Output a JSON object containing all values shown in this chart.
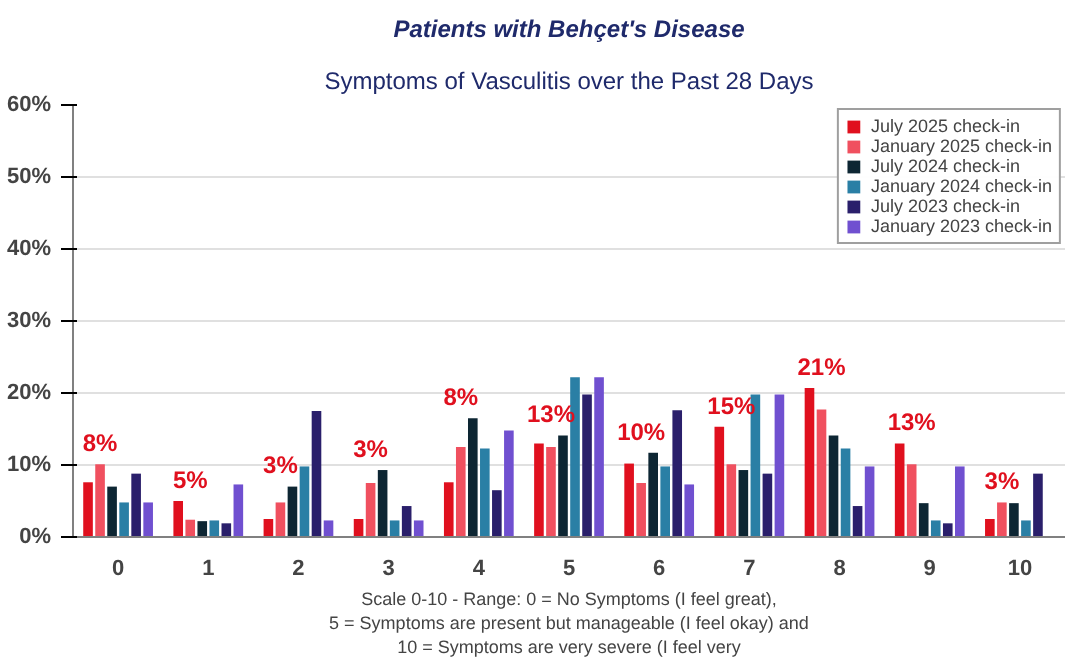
{
  "chart_data": {
    "type": "bar",
    "title": "Patients with Behçet's Disease",
    "subtitle": "Symptoms of Vasculitis over the Past 28 Days",
    "xlabel": "Scale 0-10 - Range: 0 = No Symptoms (I feel great),\n5 = Symptoms are present but manageable (I feel okay) and\n10 = Symptoms are very severe (I feel very",
    "categories": [
      "0",
      "1",
      "2",
      "3",
      "4",
      "5",
      "6",
      "7",
      "8",
      "9",
      "10"
    ],
    "series": [
      {
        "name": "July 2025 check-in",
        "color": "#e0101e",
        "values": [
          7.6,
          5.0,
          2.5,
          2.5,
          7.6,
          13.0,
          10.2,
          15.3,
          20.7,
          13.0,
          2.5
        ],
        "value_labels": [
          "8%",
          "5%",
          "3%",
          "3%",
          "8%",
          "13%",
          "10%",
          "15%",
          "21%",
          "13%",
          "3%"
        ]
      },
      {
        "name": "January 2025 check-in",
        "color": "#f0505f",
        "values": [
          10.1,
          2.4,
          4.8,
          7.5,
          12.5,
          12.5,
          7.5,
          10.1,
          17.7,
          10.1,
          4.8
        ]
      },
      {
        "name": "July 2024 check-in",
        "color": "#0d2633",
        "values": [
          7.0,
          2.2,
          7.0,
          9.3,
          16.5,
          14.1,
          11.7,
          9.3,
          14.1,
          4.7,
          4.7
        ]
      },
      {
        "name": "January 2024 check-in",
        "color": "#2a7fa5",
        "values": [
          4.8,
          2.3,
          9.8,
          2.3,
          12.3,
          22.2,
          9.8,
          19.8,
          12.3,
          2.3,
          2.3
        ]
      },
      {
        "name": "July 2023 check-in",
        "color": "#2a1f6b",
        "values": [
          8.8,
          1.9,
          17.5,
          4.3,
          6.5,
          19.8,
          17.6,
          8.8,
          4.3,
          1.9,
          8.8
        ]
      },
      {
        "name": "January 2023 check-in",
        "color": "#7050d0",
        "values": [
          4.8,
          7.3,
          2.3,
          2.3,
          14.8,
          22.2,
          7.3,
          19.8,
          9.8,
          9.8,
          null
        ]
      }
    ],
    "ylim": [
      0,
      60
    ],
    "yticks": [
      {
        "value": 0,
        "label": "0%"
      },
      {
        "value": 10,
        "label": "10%"
      },
      {
        "value": 20,
        "label": "20%"
      },
      {
        "value": 30,
        "label": "30%"
      },
      {
        "value": 40,
        "label": "40%"
      },
      {
        "value": 50,
        "label": "50%"
      },
      {
        "value": 60,
        "label": "60%"
      }
    ],
    "grid": "y",
    "legend": "top right"
  }
}
